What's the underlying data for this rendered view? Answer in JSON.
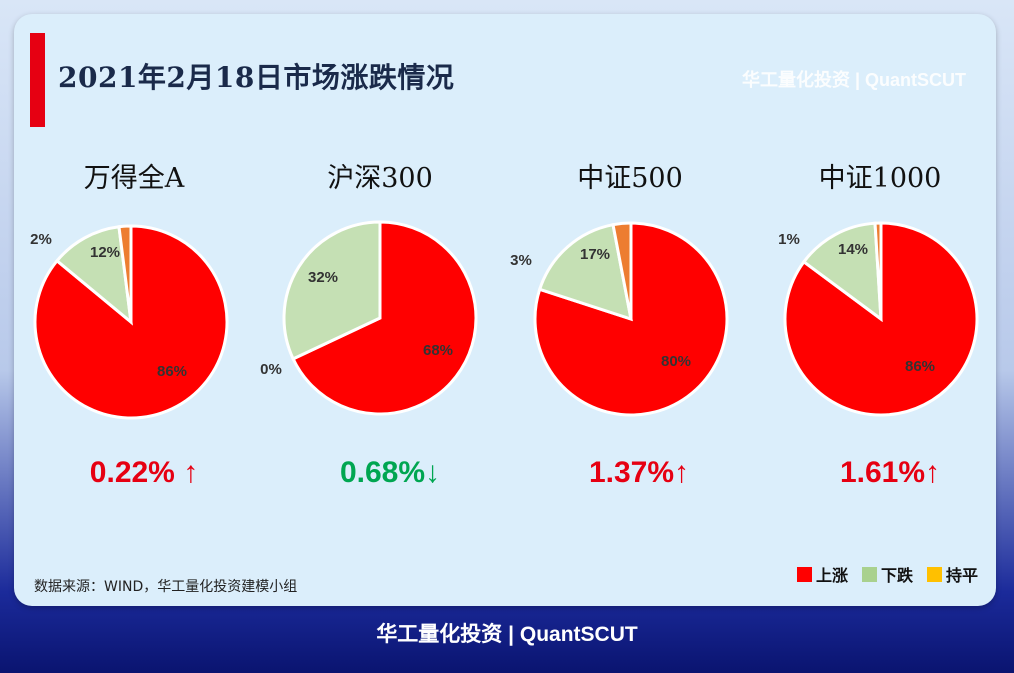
{
  "header": {
    "title": "2021年2月18日市场涨跌情况",
    "watermark": "华工量化投资 | QuantSCUT"
  },
  "colors": {
    "up": "#ff0000",
    "down": "#c5e0b4",
    "flat": "#ffc000",
    "extra": "#ed7d31",
    "change_up": "#e60012",
    "change_down": "#00a651"
  },
  "chart_data": [
    {
      "type": "pie",
      "title": "万得全A",
      "slices": [
        {
          "name": "上涨",
          "value": 86,
          "label": "86%"
        },
        {
          "name": "下跌",
          "value": 12,
          "label": "12%"
        },
        {
          "name": "other",
          "value": 2,
          "label": "2%"
        }
      ],
      "change": "0.22% ↑",
      "direction": "up"
    },
    {
      "type": "pie",
      "title": "沪深300",
      "slices": [
        {
          "name": "上涨",
          "value": 68,
          "label": "68%"
        },
        {
          "name": "下跌",
          "value": 32,
          "label": "32%"
        },
        {
          "name": "持平",
          "value": 0,
          "label": "0%"
        }
      ],
      "change": "0.68%↓",
      "direction": "down"
    },
    {
      "type": "pie",
      "title": "中证500",
      "slices": [
        {
          "name": "上涨",
          "value": 80,
          "label": "80%"
        },
        {
          "name": "下跌",
          "value": 17,
          "label": "17%"
        },
        {
          "name": "other",
          "value": 3,
          "label": "3%"
        }
      ],
      "change": "1.37%↑",
      "direction": "up"
    },
    {
      "type": "pie",
      "title": "中证1000",
      "slices": [
        {
          "name": "上涨",
          "value": 86,
          "label": "86%"
        },
        {
          "name": "下跌",
          "value": 14,
          "label": "14%"
        },
        {
          "name": "other",
          "value": 1,
          "label": "1%"
        }
      ],
      "change": "1.61%↑",
      "direction": "up"
    }
  ],
  "legend": [
    {
      "label": "上涨",
      "color": "#ff0000"
    },
    {
      "label": "下跌",
      "color": "#a9d18e"
    },
    {
      "label": "持平",
      "color": "#ffc000"
    }
  ],
  "source": "数据来源：WIND，华工量化投资建模小组",
  "footer": "华工量化投资 | QuantSCUT"
}
